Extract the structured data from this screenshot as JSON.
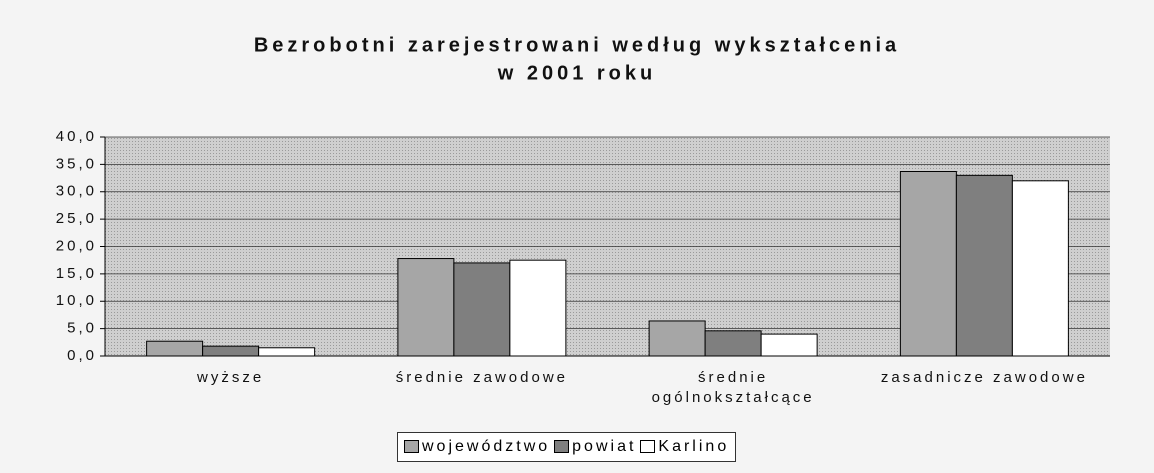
{
  "chart_data": {
    "type": "bar",
    "title": [
      "Bezrobotni zarejestrowani według wykształcenia",
      "w 2001 roku"
    ],
    "categories": [
      "wyższe",
      "średnie zawodowe",
      "średnie\nogólnokształcące",
      "zasadnicze zawodowe"
    ],
    "series": [
      {
        "name": "województwo",
        "color": "#a6a6a6",
        "values": [
          2.7,
          17.8,
          6.4,
          33.7
        ]
      },
      {
        "name": "powiat",
        "color": "#7f7f7f",
        "values": [
          1.8,
          17.0,
          4.6,
          33.0
        ]
      },
      {
        "name": "Karlino",
        "color": "#ffffff",
        "values": [
          1.5,
          17.5,
          4.0,
          32.0
        ]
      }
    ],
    "ylim": [
      0,
      40
    ],
    "yticks": [
      {
        "value": 0,
        "label": "0,0"
      },
      {
        "value": 5,
        "label": "5,0"
      },
      {
        "value": 10,
        "label": "10,0"
      },
      {
        "value": 15,
        "label": "15,0"
      },
      {
        "value": 20,
        "label": "20,0"
      },
      {
        "value": 25,
        "label": "25,0"
      },
      {
        "value": 30,
        "label": "30,0"
      },
      {
        "value": 35,
        "label": "35,0"
      },
      {
        "value": 40,
        "label": "40,0"
      }
    ],
    "grid": true,
    "legend": "bottom"
  }
}
